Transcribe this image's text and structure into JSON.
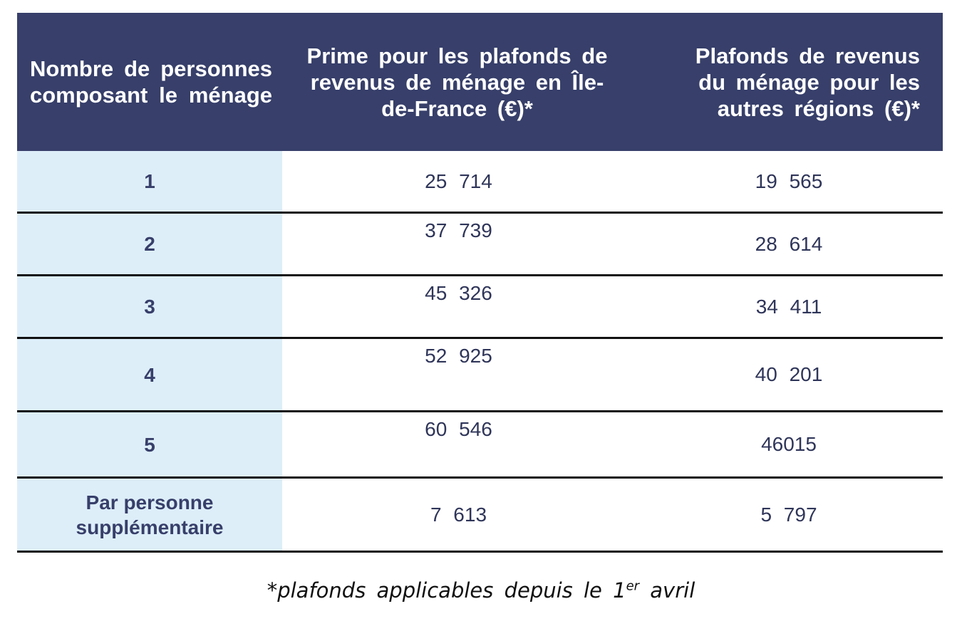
{
  "table": {
    "headers": [
      "Nombre de personnes composant le ménage",
      "Prime pour les plafonds de revenus de ménage en Île-de-France (€)*",
      "Plafonds de revenus du ménage pour les autres régions (€)*"
    ],
    "rows": [
      {
        "persons": "1",
        "idf": "25 714",
        "other": "19 565"
      },
      {
        "persons": "2",
        "idf": "37 739",
        "other": "28 614"
      },
      {
        "persons": "3",
        "idf": "45 326",
        "other": "34 411"
      },
      {
        "persons": "4",
        "idf": "52 925",
        "other": "40 201"
      },
      {
        "persons": "5",
        "idf": "60 546",
        "other": "46015"
      },
      {
        "persons": "Par personne supplémentaire",
        "idf": "7 613",
        "other": "5 797"
      }
    ]
  },
  "footnote": {
    "text": "*plafonds applicables depuis le 1",
    "superscript": "er",
    "suffix": " avril"
  }
}
